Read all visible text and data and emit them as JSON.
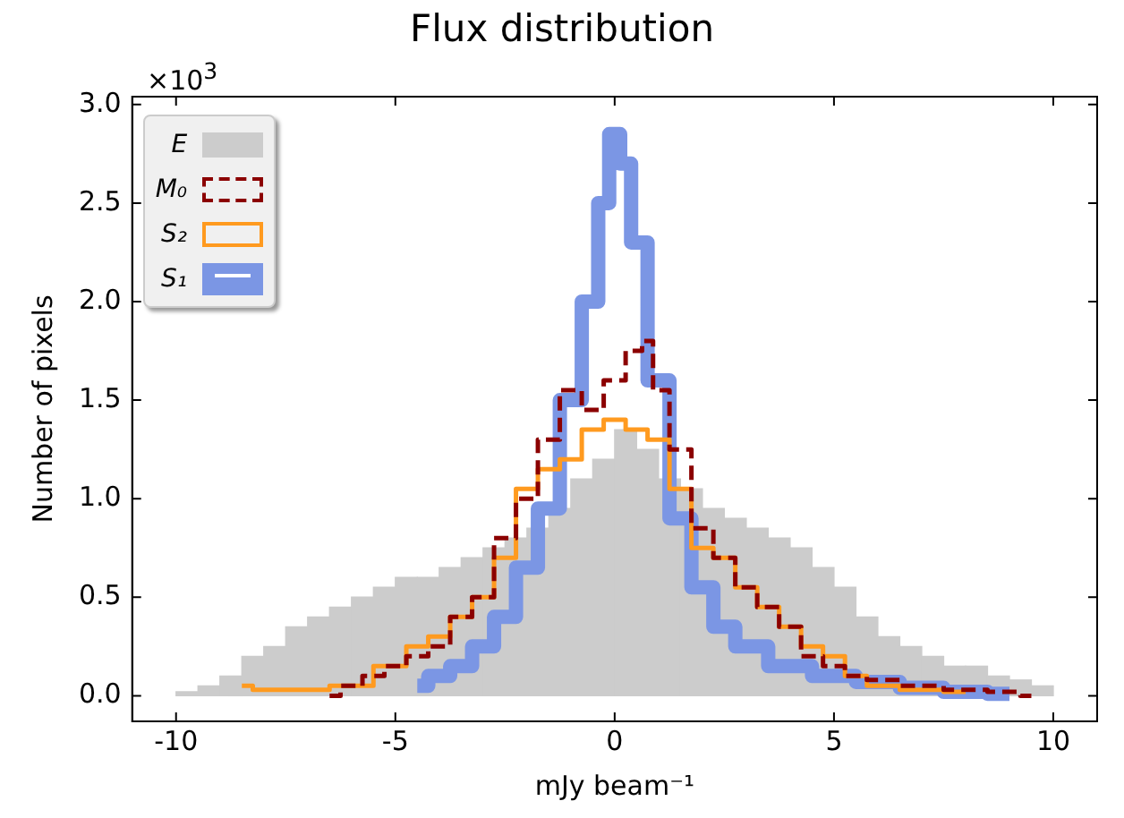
{
  "chart_data": {
    "type": "histogram",
    "title": "Flux distribution",
    "xlabel": "mJy beam⁻¹",
    "ylabel": "Number of pixels",
    "annotations": [
      "×10$^{3}$"
    ],
    "xlim": [
      -11,
      11
    ],
    "xticks": [
      -10,
      -5,
      0,
      5,
      10
    ],
    "ylim": [
      -0.13,
      3.04
    ],
    "yticks": [
      {
        "value": 0,
        "label": "0.0"
      },
      {
        "value": 0.5,
        "label": "0.5"
      },
      {
        "value": 1,
        "label": "1.0"
      },
      {
        "value": 1.5,
        "label": "1.5"
      },
      {
        "value": 2,
        "label": "2.0"
      },
      {
        "value": 2.5,
        "label": "2.5"
      },
      {
        "value": 3,
        "label": "3.0"
      }
    ],
    "grid": false,
    "legend": "top left",
    "bins": [
      -10,
      -9.5,
      -9,
      -8.5,
      -8,
      -7.5,
      -7,
      -6.5,
      -6,
      -5.5,
      -5,
      -4.5,
      -4,
      -3.5,
      -3,
      -2.5,
      -2,
      -1.5,
      -1,
      -0.5,
      0,
      0.5,
      1,
      1.5,
      2,
      2.5,
      3,
      3.5,
      4,
      4.5,
      5,
      5.5,
      6,
      6.5,
      7,
      7.5,
      8,
      8.5,
      9,
      9.5,
      10
    ],
    "series": [
      {
        "name": "E",
        "color": "#cccccc",
        "values": [
          0.02,
          0.05,
          0.1,
          0.2,
          0.25,
          0.35,
          0.4,
          0.45,
          0.5,
          0.55,
          0.6,
          0.6,
          0.65,
          0.7,
          0.75,
          0.8,
          0.85,
          0.95,
          1.1,
          1.2,
          1.35,
          1.25,
          1.1,
          1.05,
          0.95,
          0.9,
          0.85,
          0.8,
          0.75,
          0.65,
          0.55,
          0.4,
          0.3,
          0.25,
          0.2,
          0.15,
          0.15,
          0.1,
          0.08,
          0.05
        ]
      },
      {
        "name": "M₀",
        "type": "step",
        "color": "#8b0000",
        "line_style": "dashed",
        "x": [
          -6.5,
          -6,
          -5.5,
          -5,
          -4.5,
          -4,
          -3.5,
          -3,
          -2.5,
          -2,
          -1.5,
          -1,
          -0.5,
          0,
          0.5,
          0.75,
          1,
          1.5,
          2,
          2.5,
          3,
          3.5,
          4,
          4.5,
          5,
          5.5,
          6,
          7,
          8,
          9,
          9.5
        ],
        "values": [
          0,
          0.05,
          0.1,
          0.15,
          0.2,
          0.25,
          0.4,
          0.5,
          0.8,
          1,
          1.3,
          1.55,
          1.45,
          1.6,
          1.75,
          1.8,
          1.55,
          1.25,
          0.85,
          0.7,
          0.55,
          0.45,
          0.35,
          0.2,
          0.15,
          0.1,
          0.08,
          0.05,
          0.03,
          0.02,
          0
        ]
      },
      {
        "name": "S₂",
        "type": "step",
        "color": "#ff9a1f",
        "line_style": "solid",
        "x": [
          -8.5,
          -8,
          -7,
          -6,
          -5,
          -4.5,
          -4,
          -3.5,
          -3,
          -2.5,
          -2,
          -1.5,
          -1,
          -0.5,
          0,
          0.5,
          1,
          1.5,
          2,
          2.5,
          3,
          3.5,
          4,
          4.5,
          5,
          5.5,
          6,
          7,
          8
        ],
        "values": [
          0.05,
          0.03,
          0.03,
          0.05,
          0.15,
          0.25,
          0.3,
          0.4,
          0.5,
          0.7,
          1.05,
          1.15,
          1.2,
          1.35,
          1.4,
          1.35,
          1.3,
          1.05,
          0.75,
          0.7,
          0.55,
          0.45,
          0.35,
          0.25,
          0.2,
          0.1,
          0.05,
          0.03,
          0.02
        ]
      },
      {
        "name": "S₁",
        "type": "step",
        "color": "#7b96e4",
        "line_style": "solid",
        "x": [
          -4.5,
          -4,
          -3.5,
          -3,
          -2.5,
          -2,
          -1.5,
          -1,
          -0.5,
          -0.25,
          0,
          0.25,
          0.5,
          1,
          1.5,
          2,
          2.5,
          3,
          4,
          5,
          6,
          7,
          8,
          9
        ],
        "values": [
          0.05,
          0.1,
          0.15,
          0.25,
          0.4,
          0.65,
          0.95,
          1.5,
          2,
          2.5,
          2.85,
          2.7,
          2.3,
          1.6,
          0.9,
          0.55,
          0.35,
          0.25,
          0.15,
          0.1,
          0.07,
          0.04,
          0.02,
          0.01
        ]
      }
    ]
  }
}
